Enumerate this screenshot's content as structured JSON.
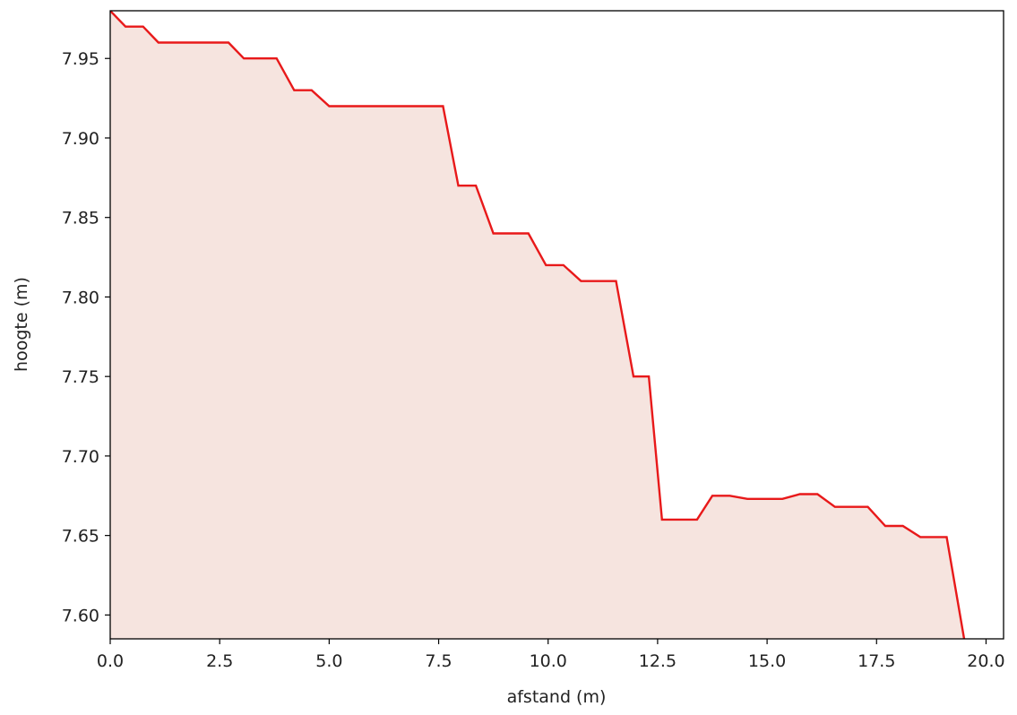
{
  "chart_data": {
    "type": "area",
    "title": "",
    "xlabel": "afstand (m)",
    "ylabel": "hoogte (m)",
    "xlim": [
      0.0,
      20.4
    ],
    "ylim": [
      7.585,
      7.98
    ],
    "xticks": [
      "0.0",
      "2.5",
      "5.0",
      "7.5",
      "10.0",
      "12.5",
      "15.0",
      "17.5",
      "20.0"
    ],
    "yticks": [
      "7.60",
      "7.65",
      "7.70",
      "7.75",
      "7.80",
      "7.85",
      "7.90",
      "7.95"
    ],
    "grid": false,
    "series": [
      {
        "line_color": "#e8191a",
        "fill_color": "#f6e4df",
        "x": [
          0.0,
          0.35,
          0.75,
          1.1,
          1.5,
          2.7,
          3.05,
          3.8,
          4.2,
          4.6,
          5.0,
          5.4,
          7.6,
          7.95,
          8.35,
          8.75,
          9.1,
          9.55,
          9.95,
          10.35,
          10.75,
          11.15,
          11.55,
          11.95,
          12.3,
          12.6,
          13.0,
          13.4,
          13.75,
          14.15,
          14.55,
          14.95,
          15.35,
          15.75,
          16.15,
          16.55,
          16.95,
          17.3,
          17.7,
          18.1,
          18.5,
          18.9,
          19.1,
          19.5
        ],
        "y": [
          7.98,
          7.97,
          7.97,
          7.96,
          7.96,
          7.96,
          7.95,
          7.95,
          7.93,
          7.93,
          7.92,
          7.92,
          7.92,
          7.87,
          7.87,
          7.84,
          7.84,
          7.84,
          7.82,
          7.82,
          7.81,
          7.81,
          7.81,
          7.75,
          7.75,
          7.66,
          7.66,
          7.66,
          7.675,
          7.675,
          7.673,
          7.673,
          7.673,
          7.676,
          7.676,
          7.668,
          7.668,
          7.668,
          7.656,
          7.656,
          7.649,
          7.649,
          7.649,
          7.585
        ]
      }
    ]
  }
}
